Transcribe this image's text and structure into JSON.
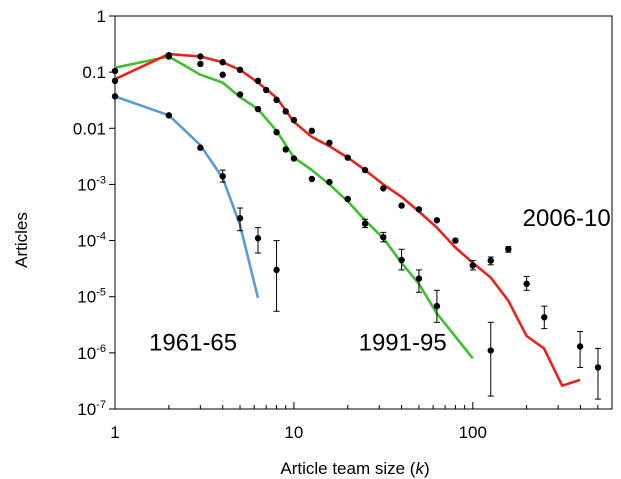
{
  "chart_data": {
    "type": "scatter",
    "xlabel_prefix": "Article team size (",
    "xlabel_var": "k",
    "xlabel_suffix": ")",
    "ylabel": "Articles",
    "xscale": "log",
    "yscale": "log",
    "xlim": [
      1,
      600
    ],
    "ylim": [
      1e-07,
      1
    ],
    "grid": false,
    "x_ticks": [
      {
        "value": 1,
        "label": "1"
      },
      {
        "value": 10,
        "label": "10"
      },
      {
        "value": 100,
        "label": "100"
      }
    ],
    "y_ticks": [
      {
        "value": 1,
        "base": "1",
        "exp": ""
      },
      {
        "value": 0.1,
        "base": "0.1",
        "exp": ""
      },
      {
        "value": 0.01,
        "base": "0.01",
        "exp": ""
      },
      {
        "value": 0.001,
        "base": "10",
        "exp": "-3"
      },
      {
        "value": 0.0001,
        "base": "10",
        "exp": "-4"
      },
      {
        "value": 1e-05,
        "base": "10",
        "exp": "-5"
      },
      {
        "value": 1e-06,
        "base": "10",
        "exp": "-6"
      },
      {
        "value": 1e-07,
        "base": "10",
        "exp": "-7"
      }
    ],
    "annotations": [
      {
        "text": "1961-65",
        "x": 1.55,
        "y": 1.1e-06
      },
      {
        "text": "1991-95",
        "x": 23,
        "y": 1.1e-06
      },
      {
        "text": "2006-10",
        "x": 190,
        "y": 0.00018
      }
    ],
    "series": [
      {
        "key": "1961-65",
        "color": "#5b9bd5",
        "line_x": [
          1,
          2,
          3,
          4,
          5,
          6.3
        ],
        "line_y": [
          0.037,
          0.017,
          0.005,
          0.0013,
          0.00019,
          9.5e-06
        ],
        "points": [
          {
            "x": 1,
            "y": 0.037
          },
          {
            "x": 2,
            "y": 0.017
          },
          {
            "x": 3,
            "y": 0.0045
          },
          {
            "x": 4,
            "y": 0.0014,
            "lo": 0.0011,
            "hi": 0.0018
          },
          {
            "x": 5,
            "y": 0.00025,
            "lo": 0.00015,
            "hi": 0.00038
          },
          {
            "x": 6.3,
            "y": 0.00011,
            "lo": 6e-05,
            "hi": 0.00017
          },
          {
            "x": 8,
            "y": 3e-05,
            "lo": 5.5e-06,
            "hi": 0.0001
          }
        ]
      },
      {
        "key": "1991-95",
        "color": "#3dbf2e",
        "line_x": [
          1,
          2,
          3,
          4,
          5,
          6.3,
          8,
          10,
          12.6,
          15.8,
          20,
          25,
          31.6,
          40,
          50,
          63,
          100
        ],
        "line_y": [
          0.12,
          0.19,
          0.09,
          0.065,
          0.036,
          0.022,
          0.009,
          0.003,
          0.0018,
          0.001,
          0.0005,
          0.00023,
          0.00011,
          4e-05,
          1.7e-05,
          5e-06,
          8e-07
        ],
        "points": [
          {
            "x": 1,
            "y": 0.105
          },
          {
            "x": 2,
            "y": 0.19
          },
          {
            "x": 3,
            "y": 0.14
          },
          {
            "x": 4,
            "y": 0.09
          },
          {
            "x": 5,
            "y": 0.04
          },
          {
            "x": 6.3,
            "y": 0.022
          },
          {
            "x": 8,
            "y": 0.0085
          },
          {
            "x": 9,
            "y": 0.0042
          },
          {
            "x": 10,
            "y": 0.0029
          },
          {
            "x": 12.6,
            "y": 0.00125
          },
          {
            "x": 15.8,
            "y": 0.0011
          },
          {
            "x": 20,
            "y": 0.00055
          },
          {
            "x": 25,
            "y": 0.0002,
            "lo": 0.00017,
            "hi": 0.00024
          },
          {
            "x": 31.6,
            "y": 0.000115,
            "lo": 9.5e-05,
            "hi": 0.00014
          },
          {
            "x": 40,
            "y": 4.5e-05,
            "lo": 3e-05,
            "hi": 7e-05
          },
          {
            "x": 50,
            "y": 2.1e-05,
            "lo": 1.2e-05,
            "hi": 3e-05
          },
          {
            "x": 63,
            "y": 6.8e-06,
            "lo": 3.5e-06,
            "hi": 1.3e-05
          },
          {
            "x": 126,
            "y": 1.1e-06,
            "lo": 1.7e-07,
            "hi": 3.5e-06
          }
        ]
      },
      {
        "key": "2006-10",
        "color": "#e8231e",
        "line_x": [
          1,
          2,
          3,
          4,
          5,
          6.3,
          8,
          10,
          12.6,
          15.8,
          20,
          25,
          31.6,
          40,
          50,
          63,
          80,
          100,
          126,
          158,
          200,
          250,
          316,
          398
        ],
        "line_y": [
          0.075,
          0.21,
          0.19,
          0.15,
          0.11,
          0.065,
          0.035,
          0.013,
          0.007,
          0.0048,
          0.003,
          0.0018,
          0.001,
          0.0006,
          0.00033,
          0.00017,
          7.5e-05,
          4e-05,
          2.2e-05,
          8.5e-06,
          2e-06,
          1.2e-06,
          2.6e-07,
          3.3e-07
        ],
        "points": [
          {
            "x": 1,
            "y": 0.07
          },
          {
            "x": 2,
            "y": 0.2
          },
          {
            "x": 3,
            "y": 0.19
          },
          {
            "x": 4,
            "y": 0.15
          },
          {
            "x": 5,
            "y": 0.11
          },
          {
            "x": 6.3,
            "y": 0.07
          },
          {
            "x": 7,
            "y": 0.048
          },
          {
            "x": 8,
            "y": 0.032
          },
          {
            "x": 9,
            "y": 0.02
          },
          {
            "x": 10,
            "y": 0.014
          },
          {
            "x": 12.6,
            "y": 0.009
          },
          {
            "x": 15.8,
            "y": 0.0055
          },
          {
            "x": 20,
            "y": 0.003
          },
          {
            "x": 25,
            "y": 0.0018
          },
          {
            "x": 31.6,
            "y": 0.00085
          },
          {
            "x": 40,
            "y": 0.00042
          },
          {
            "x": 50,
            "y": 0.00036
          },
          {
            "x": 63,
            "y": 0.00023
          },
          {
            "x": 80,
            "y": 0.0001
          },
          {
            "x": 100,
            "y": 3.6e-05,
            "lo": 3e-05,
            "hi": 4.4e-05
          },
          {
            "x": 126,
            "y": 4.4e-05,
            "lo": 3.7e-05,
            "hi": 5.1e-05
          },
          {
            "x": 158,
            "y": 7e-05,
            "lo": 6.2e-05,
            "hi": 7.8e-05
          },
          {
            "x": 200,
            "y": 1.7e-05,
            "lo": 1.3e-05,
            "hi": 2.3e-05
          },
          {
            "x": 251,
            "y": 4.3e-06,
            "lo": 2.7e-06,
            "hi": 6.8e-06
          },
          {
            "x": 398,
            "y": 1.3e-06,
            "lo": 5.5e-07,
            "hi": 2.4e-06
          },
          {
            "x": 501,
            "y": 5.5e-07,
            "lo": 1.5e-07,
            "hi": 1.2e-06
          }
        ]
      }
    ]
  }
}
